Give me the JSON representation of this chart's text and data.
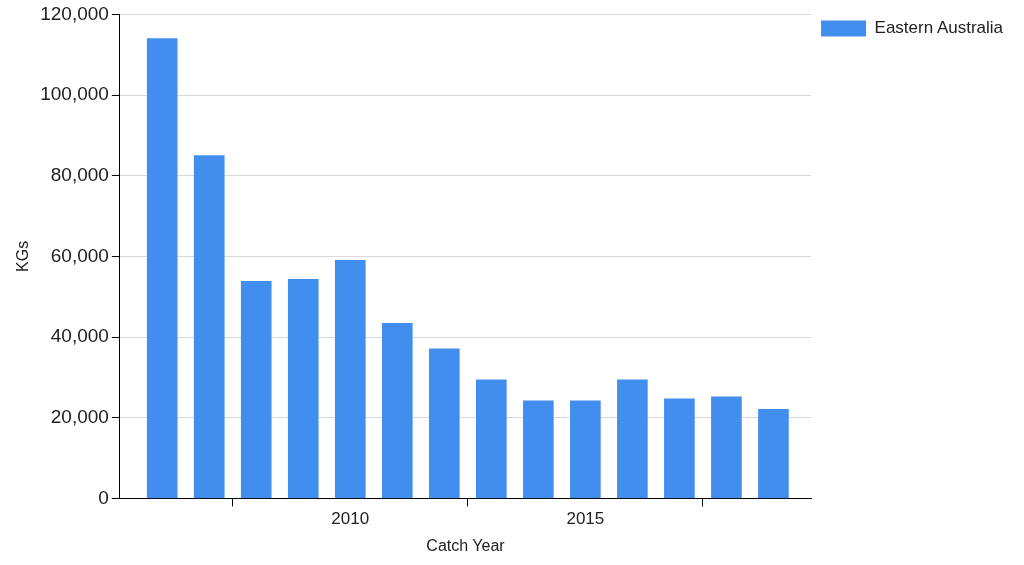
{
  "chart_data": {
    "type": "bar",
    "xlabel": "Catch Year",
    "ylabel": "KGs",
    "x": [
      2006,
      2007,
      2008,
      2009,
      2010,
      2011,
      2012,
      2013,
      2014,
      2015,
      2016,
      2017,
      2018,
      2019
    ],
    "series": [
      {
        "name": "Eastern Australia",
        "color": "#428eee",
        "values": [
          114000,
          85000,
          53800,
          54300,
          59000,
          43400,
          37100,
          29400,
          24200,
          24200,
          29400,
          24700,
          25200,
          22100
        ]
      }
    ],
    "xlim": [
      2005.1,
      2019.8
    ],
    "xticks": [
      2010,
      2015
    ],
    "ylim": [
      0,
      120000
    ],
    "yticks": [
      {
        "value": 0,
        "label": "0"
      },
      {
        "value": 20000,
        "label": "20,000"
      },
      {
        "value": 40000,
        "label": "40,000"
      },
      {
        "value": 60000,
        "label": "60,000"
      },
      {
        "value": 80000,
        "label": "80,000"
      },
      {
        "value": 100000,
        "label": "100,000"
      },
      {
        "value": 120000,
        "label": "120,000"
      }
    ],
    "grid": "y",
    "legend": "top right"
  }
}
